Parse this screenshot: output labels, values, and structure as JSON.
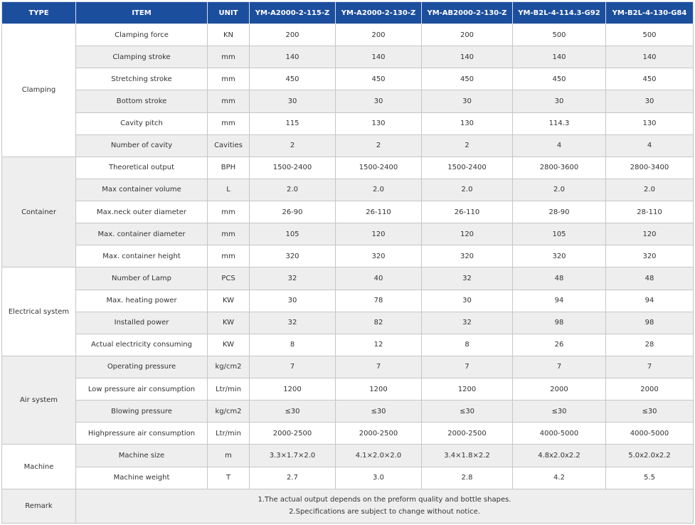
{
  "header": {
    "type": "TYPE",
    "item": "ITEM",
    "unit": "UNIT",
    "models": [
      "YM-A2000-2-115-Z",
      "YM-A2000-2-130-Z",
      "YM-AB2000-2-130-Z",
      "YM-B2L-4-114.3-G92",
      "YM-B2L-4-130-G84"
    ]
  },
  "groups": [
    {
      "type": "Clamping",
      "rows": [
        {
          "item": "Clamping force",
          "unit": "KN",
          "values": [
            "200",
            "200",
            "200",
            "500",
            "500"
          ]
        },
        {
          "item": "Clamping stroke",
          "unit": "mm",
          "values": [
            "140",
            "140",
            "140",
            "140",
            "140"
          ]
        },
        {
          "item": "Stretching stroke",
          "unit": "mm",
          "values": [
            "450",
            "450",
            "450",
            "450",
            "450"
          ]
        },
        {
          "item": "Bottom stroke",
          "unit": "mm",
          "values": [
            "30",
            "30",
            "30",
            "30",
            "30"
          ]
        },
        {
          "item": "Cavity pitch",
          "unit": "mm",
          "values": [
            "115",
            "130",
            "130",
            "114.3",
            "130"
          ]
        },
        {
          "item": "Number of cavity",
          "unit": "Cavities",
          "values": [
            "2",
            "2",
            "2",
            "4",
            "4"
          ]
        }
      ]
    },
    {
      "type": "Container",
      "rows": [
        {
          "item": "Theoretical output",
          "unit": "BPH",
          "values": [
            "1500-2400",
            "1500-2400",
            "1500-2400",
            "2800-3600",
            "2800-3400"
          ]
        },
        {
          "item": "Max container volume",
          "unit": "L",
          "values": [
            "2.0",
            "2.0",
            "2.0",
            "2.0",
            "2.0"
          ]
        },
        {
          "item": "Max.neck outer diameter",
          "unit": "mm",
          "values": [
            "26-90",
            "26-110",
            "26-110",
            "28-90",
            "28-110"
          ]
        },
        {
          "item": "Max. container diameter",
          "unit": "mm",
          "values": [
            "105",
            "120",
            "120",
            "105",
            "120"
          ]
        },
        {
          "item": "Max. container height",
          "unit": "mm",
          "values": [
            "320",
            "320",
            "320",
            "320",
            "320"
          ]
        }
      ]
    },
    {
      "type": "Electrical system",
      "rows": [
        {
          "item": "Number of Lamp",
          "unit": "PCS",
          "values": [
            "32",
            "40",
            "32",
            "48",
            "48"
          ]
        },
        {
          "item": "Max. heating power",
          "unit": "KW",
          "values": [
            "30",
            "78",
            "30",
            "94",
            "94"
          ]
        },
        {
          "item": "Installed power",
          "unit": "KW",
          "values": [
            "32",
            "82",
            "32",
            "98",
            "98"
          ]
        },
        {
          "item": "Actual electricity consuming",
          "unit": "KW",
          "values": [
            "8",
            "12",
            "8",
            "26",
            "28"
          ]
        }
      ]
    },
    {
      "type": "Air  system",
      "rows": [
        {
          "item": "Operating pressure",
          "unit": "kg/cm2",
          "values": [
            "7",
            "7",
            "7",
            "7",
            "7"
          ]
        },
        {
          "item": "Low pressure air consumption",
          "unit": "Ltr/min",
          "values": [
            "1200",
            "1200",
            "1200",
            "2000",
            "2000"
          ]
        },
        {
          "item": "Blowing pressure",
          "unit": "kg/cm2",
          "values": [
            "≤30",
            "≤30",
            "≤30",
            "≤30",
            "≤30"
          ]
        },
        {
          "item": "Highpressure air consumption",
          "unit": "Ltr/min",
          "values": [
            "2000-2500",
            "2000-2500",
            "2000-2500",
            "4000-5000",
            "4000-5000"
          ]
        }
      ]
    },
    {
      "type": "Machine",
      "rows": [
        {
          "item": "Machine size",
          "unit": "m",
          "values": [
            "3.3×1.7×2.0",
            "4.1×2.0×2.0",
            "3.4×1.8×2.2",
            "4.8x2.0x2.2",
            "5.0x2.0x2.2"
          ]
        },
        {
          "item": "Machine weight",
          "unit": "T",
          "values": [
            "2.7",
            "3.0",
            "2.8",
            "4.2",
            "5.5"
          ]
        }
      ]
    }
  ],
  "remark": {
    "type": "Remark",
    "lines": [
      "1.The actual output depends on the preform quality and bottle shapes.",
      "2.Specifications are subject to change without notice."
    ]
  },
  "colors": {
    "header_bg": "#1c4e9e",
    "header_text": "#ffffff",
    "row_alt_bg": "#eeeeee",
    "border": "#c6c6c6",
    "text": "#333333"
  }
}
